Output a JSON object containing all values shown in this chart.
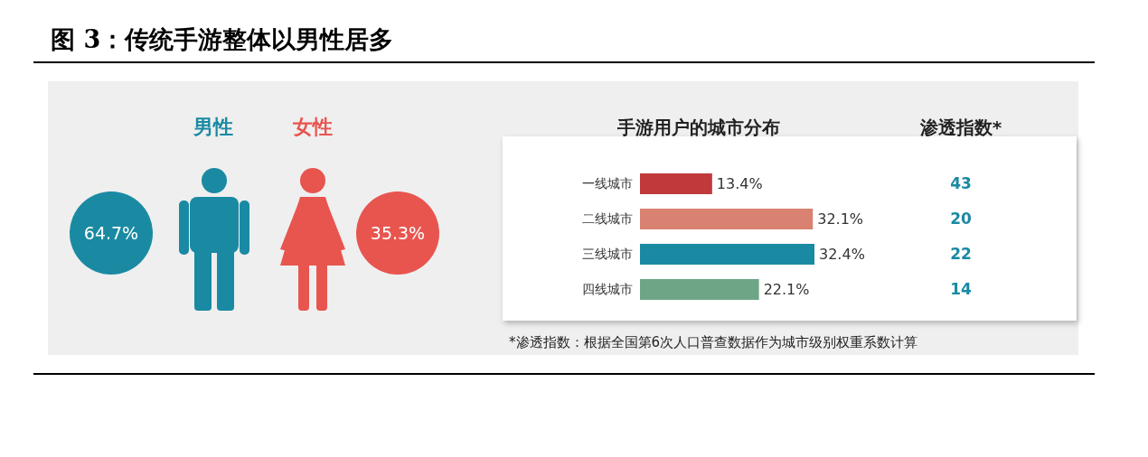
{
  "chart_data": [
    {
      "type": "other",
      "title": "图 3：传统手游整体以男性居多",
      "categories": [
        "男性",
        "女性"
      ],
      "value_labels": [
        "64.7%",
        "35.3%"
      ],
      "colors": [
        "#1a8aa3",
        "#e8554f"
      ]
    },
    {
      "type": "bar",
      "orientation": "horizontal",
      "title": "手游用户的城市分布",
      "categories": [
        "一线城市",
        "二线城市",
        "三线城市",
        "四线城市"
      ],
      "values": [
        13.4,
        32.1,
        32.4,
        22.1
      ],
      "value_labels": [
        "13.4%",
        "32.1%",
        "32.4%",
        "22.1%"
      ],
      "colors": [
        "#c0393b",
        "#d98272",
        "#1a8aa3",
        "#6fa587"
      ],
      "annotations": [
        "渗透指数*",
        "43",
        "20",
        "22",
        "14",
        "*渗透指数：根据全国第6次人口普查数据作为城市级别权重系数计算"
      ]
    }
  ]
}
